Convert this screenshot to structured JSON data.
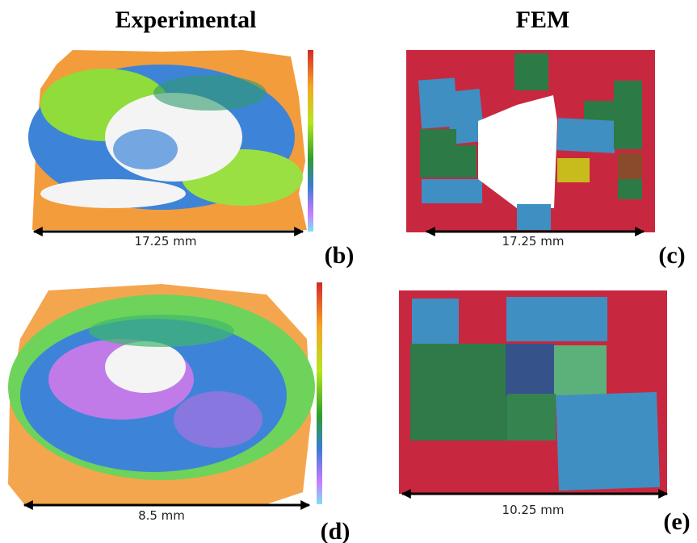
{
  "header": {
    "left_title": "Experimental",
    "right_title": "FEM"
  },
  "panels": [
    {
      "scale_label": "17.25 mm",
      "panel_label": "(b)"
    },
    {
      "scale_label": "17.25 mm",
      "panel_label": "(c)"
    },
    {
      "scale_label": "8.5 mm",
      "panel_label": "(d)"
    },
    {
      "scale_label": "10.25 mm",
      "panel_label": "(e)"
    }
  ]
}
